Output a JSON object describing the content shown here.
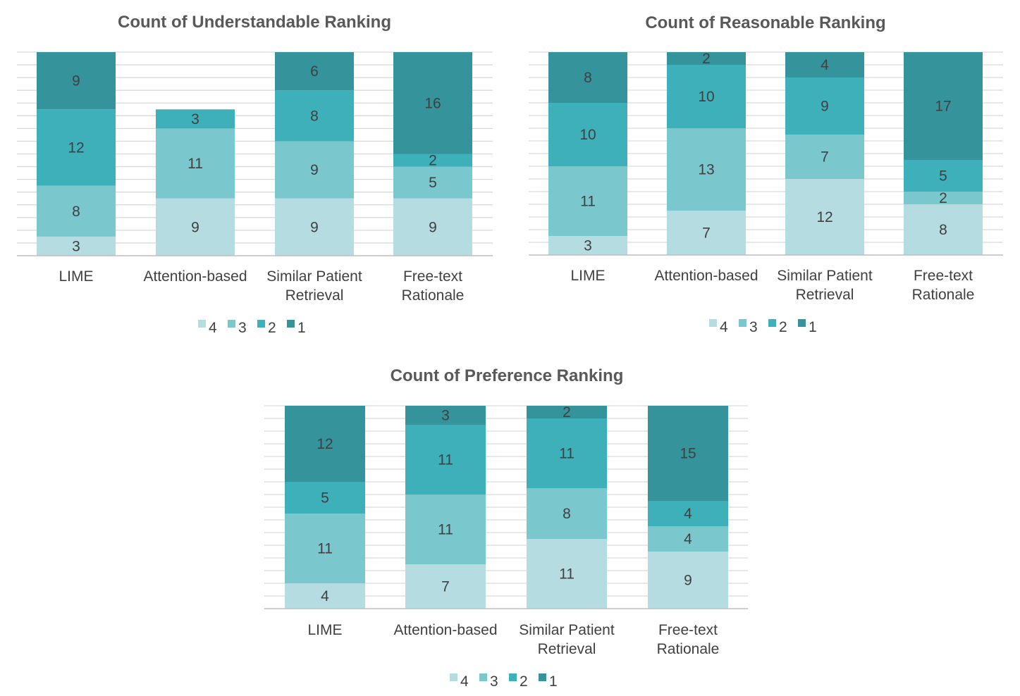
{
  "colors": {
    "4": "#b5dde1",
    "3": "#7ac7cd",
    "2": "#3eb0b9",
    "1": "#35939b"
  },
  "chart_data": [
    {
      "type": "bar",
      "stacked": true,
      "title": "Count of Understandable Ranking",
      "categories": [
        [
          "LIME"
        ],
        [
          "Attention-based"
        ],
        [
          "Similar Patient",
          "Retrieval"
        ],
        [
          "Free-text",
          "Rationale"
        ]
      ],
      "series": [
        {
          "name": "4",
          "values": [
            3,
            9,
            9,
            9
          ]
        },
        {
          "name": "3",
          "values": [
            8,
            11,
            9,
            5
          ]
        },
        {
          "name": "2",
          "values": [
            12,
            3,
            8,
            2
          ]
        },
        {
          "name": "1",
          "values": [
            9,
            0,
            6,
            16
          ]
        }
      ],
      "ylim": [
        0,
        32
      ],
      "grid": true,
      "legend": "bottom"
    },
    {
      "type": "bar",
      "stacked": true,
      "title": "Count of Reasonable Ranking",
      "categories": [
        [
          "LIME"
        ],
        [
          "Attention-based"
        ],
        [
          "Similar Patient",
          "Retrieval"
        ],
        [
          "Free-text",
          "Rationale"
        ]
      ],
      "series": [
        {
          "name": "4",
          "values": [
            3,
            7,
            12,
            8
          ]
        },
        {
          "name": "3",
          "values": [
            11,
            13,
            7,
            2
          ]
        },
        {
          "name": "2",
          "values": [
            10,
            10,
            9,
            5
          ]
        },
        {
          "name": "1",
          "values": [
            8,
            2,
            4,
            17
          ]
        }
      ],
      "ylim": [
        0,
        32
      ],
      "grid": true,
      "legend": "bottom"
    },
    {
      "type": "bar",
      "stacked": true,
      "title": "Count of Preference Ranking",
      "categories": [
        [
          "LIME"
        ],
        [
          "Attention-based"
        ],
        [
          "Similar Patient",
          "Retrieval"
        ],
        [
          "Free-text",
          "Rationale"
        ]
      ],
      "series": [
        {
          "name": "4",
          "values": [
            4,
            7,
            11,
            9
          ]
        },
        {
          "name": "3",
          "values": [
            11,
            11,
            8,
            4
          ]
        },
        {
          "name": "2",
          "values": [
            5,
            11,
            11,
            4
          ]
        },
        {
          "name": "1",
          "values": [
            12,
            3,
            2,
            15
          ]
        }
      ],
      "ylim": [
        0,
        32
      ],
      "grid": true,
      "legend": "bottom"
    }
  ]
}
